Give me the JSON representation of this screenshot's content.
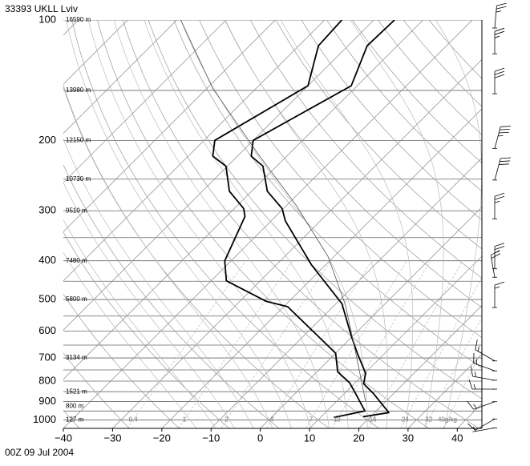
{
  "chart_data": {
    "type": "skewt",
    "title": "33393 UKLL Lviv",
    "footer": "00Z 09 Jul 2004",
    "xlim": [
      -40,
      45
    ],
    "ylim": [
      1050,
      100
    ],
    "log_y": true,
    "xticks": [
      {
        "value": -40,
        "label": "−40"
      },
      {
        "value": -30,
        "label": "−30"
      },
      {
        "value": -20,
        "label": "−20"
      },
      {
        "value": -10,
        "label": "−10"
      },
      0,
      10,
      20,
      30,
      40
    ],
    "yticks": [
      100,
      200,
      300,
      400,
      500,
      600,
      700,
      800,
      900,
      1000
    ],
    "isobars": [
      100,
      150,
      200,
      250,
      300,
      350,
      400,
      450,
      500,
      550,
      600,
      650,
      700,
      750,
      800,
      850,
      900,
      950,
      1000,
      1050
    ],
    "isotherms": [
      -120,
      -110,
      -100,
      -90,
      -80,
      -70,
      -60,
      -50,
      -40,
      -30,
      -20,
      -10,
      0,
      10,
      20,
      30,
      40
    ],
    "dry_adiabats": [
      -40,
      -30,
      -20,
      -10,
      0,
      10,
      20,
      30,
      40,
      50,
      60,
      70,
      80,
      90,
      100,
      110,
      120,
      130,
      140,
      150,
      160
    ],
    "moist_adiabats": [
      -16,
      -12,
      -8,
      -4,
      0,
      4,
      8,
      12,
      16,
      20,
      24,
      28,
      32,
      36
    ],
    "mixing_ratios": [
      0.4,
      1,
      2,
      4,
      7,
      10,
      16,
      24,
      32,
      {
        "value": 40,
        "label": "40g/kg"
      }
    ],
    "heights": [
      {
        "p": 100,
        "label": "16590 m"
      },
      {
        "p": 150,
        "label": "13980 m"
      },
      {
        "p": 200,
        "label": "12150 m"
      },
      {
        "p": 250,
        "label": "10730 m"
      },
      {
        "p": 300,
        "label": "9510 m"
      },
      {
        "p": 400,
        "label": "7480 m"
      },
      {
        "p": 500,
        "label": "5800 m"
      },
      {
        "p": 700,
        "label": "3134 m"
      },
      {
        "p": 850,
        "label": "1521 m"
      },
      {
        "p": 925,
        "label": "800 m"
      },
      {
        "p": 1000,
        "label": "127 m"
      }
    ],
    "series": [
      {
        "color": "#000000",
        "width": 1.8,
        "p": [
          100,
          116,
          146,
          200,
          219,
          232,
          268,
          296,
          318,
          410,
          512,
          621,
          681,
          765,
          812,
          858,
          959,
          982
        ],
        "values": [
          -55.8,
          -56.1,
          -51.2,
          -60.0,
          -57.2,
          -52.8,
          -46.8,
          -40.3,
          -37.1,
          -22.8,
          -8.8,
          0.0,
          4.4,
          10.2,
          11.9,
          15.8,
          22.9,
          18.5
        ]
      },
      {
        "color": "#000000",
        "width": 1.8,
        "p": [
          100,
          116,
          146,
          200,
          219,
          232,
          268,
          296,
          310,
          400,
          449,
          505,
          521,
          681,
          758,
          808,
          866,
          950,
          986
        ],
        "values": [
          -66.5,
          -66.0,
          -60.0,
          -67.8,
          -65.0,
          -60.3,
          -54.5,
          -48.1,
          -46.2,
          -41.3,
          -36.9,
          -24.7,
          -19.2,
          0.0,
          4.2,
          8.9,
          12.7,
          17.7,
          12.7
        ]
      },
      {
        "color": "#555555",
        "width": 0.8,
        "p": [
          100,
          148,
          214,
          290,
          391,
          516,
          681,
          899
        ],
        "values": [
          -99.2,
          -78.9,
          -56.9,
          -38.2,
          -21.1,
          -7.8,
          4.1,
          15.9
        ]
      }
    ],
    "winds": [
      {
        "p": 100,
        "dir": 5,
        "speed": 25
      },
      {
        "p": 116,
        "dir": 0,
        "speed": 25
      },
      {
        "p": 146,
        "dir": 0,
        "speed": 30
      },
      {
        "p": 200,
        "dir": 15,
        "speed": 35
      },
      {
        "p": 240,
        "dir": 15,
        "speed": 30
      },
      {
        "p": 300,
        "dir": 0,
        "speed": 25
      },
      {
        "p": 400,
        "dir": 0,
        "speed": 25
      },
      {
        "p": 420,
        "dir": 350,
        "speed": 20
      },
      {
        "p": 500,
        "dir": 0,
        "speed": 15
      },
      {
        "p": 680,
        "dir": 300,
        "speed": 15
      },
      {
        "p": 720,
        "dir": 290,
        "speed": 15
      },
      {
        "p": 760,
        "dir": 280,
        "speed": 15
      },
      {
        "p": 800,
        "dir": 270,
        "speed": 15
      },
      {
        "p": 860,
        "dir": 250,
        "speed": 15
      },
      {
        "p": 950,
        "dir": 240,
        "speed": 10
      },
      {
        "p": 1000,
        "dir": 260,
        "speed": 5
      }
    ]
  }
}
